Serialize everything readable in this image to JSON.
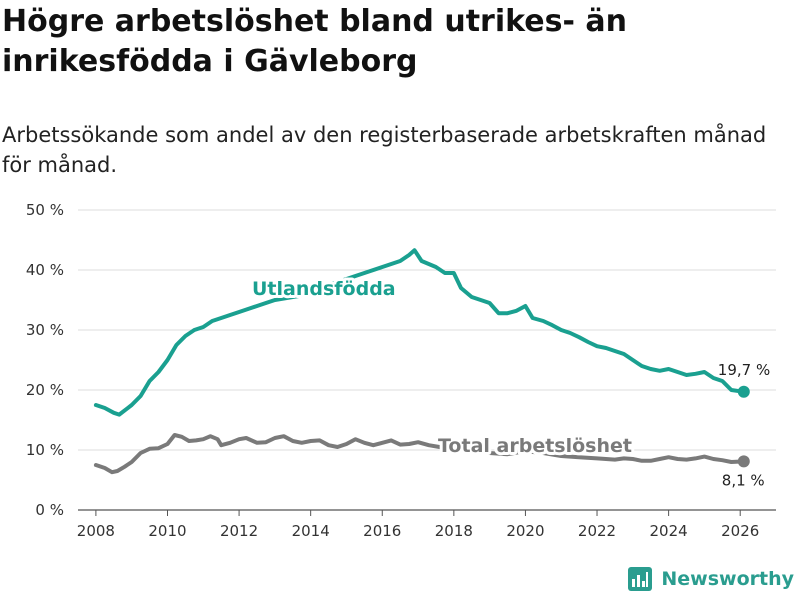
{
  "chart_data": {
    "type": "line",
    "title": "Högre arbetslöshet bland utrikes- än inrikesfödda i Gävleborg",
    "subtitle": "Arbetssökande som andel av den registerbaserade arbetskraften månad för månad.",
    "xlabel": "",
    "ylabel": "",
    "xlim": [
      2007.5,
      2027
    ],
    "ylim": [
      0,
      50
    ],
    "grid": true,
    "x_ticks": [
      2008,
      2010,
      2012,
      2014,
      2016,
      2018,
      2020,
      2022,
      2024,
      2026
    ],
    "x_tick_labels": [
      "2008",
      "2010",
      "2012",
      "2014",
      "2016",
      "2018",
      "2020",
      "2022",
      "2024",
      "2026"
    ],
    "y_ticks": [
      0,
      10,
      20,
      30,
      40,
      50
    ],
    "y_tick_labels": [
      "0 %",
      "10 %",
      "20 %",
      "30 %",
      "40 %",
      "50 %"
    ],
    "series": [
      {
        "name": "Utlandsfödda",
        "color": "#1aa090",
        "end_label": "19,7 %",
        "points": [
          [
            2008,
            17.5
          ],
          [
            2008.25,
            17.0
          ],
          [
            2008.5,
            16.2
          ],
          [
            2008.65,
            15.9
          ],
          [
            2008.85,
            16.8
          ],
          [
            2009,
            17.5
          ],
          [
            2009.25,
            19.0
          ],
          [
            2009.5,
            21.5
          ],
          [
            2009.75,
            23.0
          ],
          [
            2010,
            25.0
          ],
          [
            2010.25,
            27.5
          ],
          [
            2010.5,
            29.0
          ],
          [
            2010.75,
            30.0
          ],
          [
            2011,
            30.5
          ],
          [
            2011.25,
            31.5
          ],
          [
            2011.5,
            32.0
          ],
          [
            2011.75,
            32.5
          ],
          [
            2012,
            33.0
          ],
          [
            2012.25,
            33.5
          ],
          [
            2012.5,
            34.0
          ],
          [
            2012.75,
            34.5
          ],
          [
            2013,
            35.0
          ],
          [
            2013.5,
            35.5
          ],
          [
            2014,
            36.0
          ],
          [
            2014.5,
            37.5
          ],
          [
            2015,
            38.5
          ],
          [
            2015.5,
            39.5
          ],
          [
            2016,
            40.5
          ],
          [
            2016.5,
            41.5
          ],
          [
            2016.75,
            42.5
          ],
          [
            2016.9,
            43.3
          ],
          [
            2017.1,
            41.5
          ],
          [
            2017.5,
            40.5
          ],
          [
            2017.75,
            39.5
          ],
          [
            2018,
            39.5
          ],
          [
            2018.2,
            37.0
          ],
          [
            2018.5,
            35.5
          ],
          [
            2018.75,
            35.0
          ],
          [
            2019,
            34.5
          ],
          [
            2019.25,
            32.8
          ],
          [
            2019.5,
            32.8
          ],
          [
            2019.75,
            33.2
          ],
          [
            2020,
            34.0
          ],
          [
            2020.2,
            32.0
          ],
          [
            2020.5,
            31.5
          ],
          [
            2020.75,
            30.8
          ],
          [
            2021,
            30.0
          ],
          [
            2021.25,
            29.5
          ],
          [
            2021.5,
            28.8
          ],
          [
            2021.75,
            28.0
          ],
          [
            2022,
            27.3
          ],
          [
            2022.25,
            27.0
          ],
          [
            2022.5,
            26.5
          ],
          [
            2022.75,
            26.0
          ],
          [
            2023,
            25.0
          ],
          [
            2023.25,
            24.0
          ],
          [
            2023.5,
            23.5
          ],
          [
            2023.75,
            23.2
          ],
          [
            2024,
            23.5
          ],
          [
            2024.25,
            23.0
          ],
          [
            2024.5,
            22.5
          ],
          [
            2024.75,
            22.7
          ],
          [
            2025,
            23.0
          ],
          [
            2025.25,
            22.0
          ],
          [
            2025.5,
            21.5
          ],
          [
            2025.75,
            20.0
          ],
          [
            2026.1,
            19.7
          ]
        ]
      },
      {
        "name": "Total arbetslöshet",
        "color": "#7a7a7a",
        "end_label": "8,1 %",
        "points": [
          [
            2008,
            7.5
          ],
          [
            2008.25,
            7.0
          ],
          [
            2008.45,
            6.3
          ],
          [
            2008.6,
            6.5
          ],
          [
            2008.8,
            7.2
          ],
          [
            2009,
            8.0
          ],
          [
            2009.25,
            9.5
          ],
          [
            2009.5,
            10.2
          ],
          [
            2009.75,
            10.3
          ],
          [
            2010,
            11.0
          ],
          [
            2010.2,
            12.5
          ],
          [
            2010.4,
            12.2
          ],
          [
            2010.6,
            11.5
          ],
          [
            2010.8,
            11.6
          ],
          [
            2011,
            11.8
          ],
          [
            2011.2,
            12.3
          ],
          [
            2011.4,
            11.8
          ],
          [
            2011.5,
            10.8
          ],
          [
            2011.75,
            11.2
          ],
          [
            2012,
            11.8
          ],
          [
            2012.2,
            12.0
          ],
          [
            2012.5,
            11.2
          ],
          [
            2012.75,
            11.3
          ],
          [
            2013,
            12.0
          ],
          [
            2013.25,
            12.3
          ],
          [
            2013.5,
            11.5
          ],
          [
            2013.75,
            11.2
          ],
          [
            2014,
            11.5
          ],
          [
            2014.25,
            11.6
          ],
          [
            2014.5,
            10.8
          ],
          [
            2014.75,
            10.5
          ],
          [
            2015,
            11.0
          ],
          [
            2015.25,
            11.8
          ],
          [
            2015.5,
            11.2
          ],
          [
            2015.75,
            10.8
          ],
          [
            2016,
            11.2
          ],
          [
            2016.25,
            11.6
          ],
          [
            2016.5,
            10.9
          ],
          [
            2016.75,
            11.0
          ],
          [
            2017,
            11.3
          ],
          [
            2017.3,
            10.8
          ],
          [
            2017.6,
            10.5
          ],
          [
            2018,
            10.0
          ],
          [
            2018.5,
            9.8
          ],
          [
            2019,
            9.5
          ],
          [
            2019.5,
            9.3
          ],
          [
            2020,
            9.8
          ],
          [
            2020.5,
            9.5
          ],
          [
            2021,
            9.0
          ],
          [
            2021.5,
            8.8
          ],
          [
            2022,
            8.6
          ],
          [
            2022.5,
            8.4
          ],
          [
            2022.75,
            8.6
          ],
          [
            2023,
            8.5
          ],
          [
            2023.25,
            8.2
          ],
          [
            2023.5,
            8.2
          ],
          [
            2023.75,
            8.5
          ],
          [
            2024,
            8.8
          ],
          [
            2024.25,
            8.5
          ],
          [
            2024.5,
            8.4
          ],
          [
            2024.75,
            8.6
          ],
          [
            2025,
            8.9
          ],
          [
            2025.25,
            8.5
          ],
          [
            2025.5,
            8.3
          ],
          [
            2025.75,
            8.0
          ],
          [
            2026.1,
            8.1
          ]
        ]
      }
    ]
  },
  "branding": {
    "name": "Newsworthy",
    "icon": "newsworthy-logo-icon",
    "color": "#2a9d8f"
  }
}
